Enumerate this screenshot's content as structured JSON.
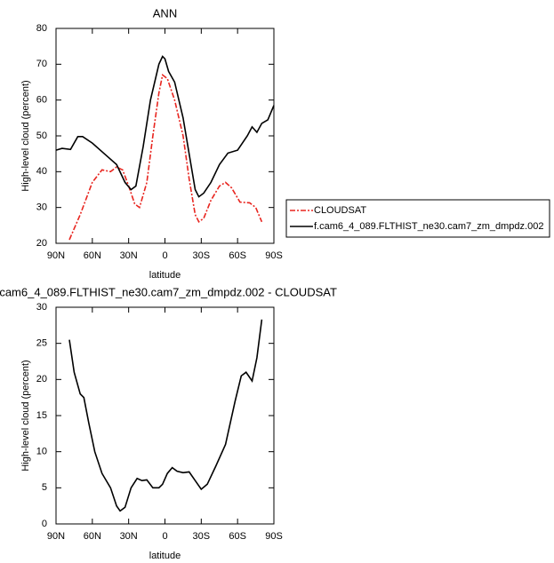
{
  "chart_data": [
    {
      "type": "line",
      "title": "ANN",
      "xlabel": "latitude",
      "ylabel": "High-level cloud (percent)",
      "xlim": [
        90,
        -90
      ],
      "ylim": [
        20,
        80
      ],
      "xticks": [
        {
          "value": 90,
          "label": "90N"
        },
        {
          "value": 60,
          "label": "60N"
        },
        {
          "value": 30,
          "label": "30N"
        },
        0,
        {
          "value": -30,
          "label": "30S"
        },
        {
          "value": -60,
          "label": "60S"
        },
        {
          "value": -90,
          "label": "90S"
        }
      ],
      "yticks": [
        20,
        30,
        40,
        50,
        60,
        70,
        80
      ],
      "legend": "right",
      "series": [
        {
          "name": "CLOUDSAT",
          "color": "#e8251f",
          "linestyle": "dashed",
          "x": [
            79,
            70,
            60,
            52,
            45,
            40,
            35,
            30,
            25,
            21,
            15,
            10,
            5,
            2,
            -2,
            -8,
            -15,
            -20,
            -25,
            -28,
            -32,
            -38,
            -45,
            -50,
            -55,
            -62,
            -70,
            -75,
            -80
          ],
          "values": [
            21,
            28,
            37,
            40.5,
            40,
            41.3,
            40.5,
            36,
            31,
            30,
            37,
            50,
            62,
            67,
            66,
            60,
            50,
            38,
            28,
            26,
            27,
            32,
            36,
            37,
            35.5,
            31.5,
            31.3,
            30,
            26
          ]
        },
        {
          "name": "f.cam6_4_089.FLTHIST_ne30.cam7_zm_dmpdz.002",
          "color": "#000000",
          "linestyle": "solid",
          "x": [
            90,
            85,
            78,
            72,
            68,
            60,
            50,
            40,
            33,
            28,
            24,
            18,
            12,
            5,
            2,
            0,
            -3,
            -8,
            -15,
            -20,
            -25,
            -28,
            -32,
            -38,
            -45,
            -52,
            -60,
            -68,
            -72,
            -76,
            -80,
            -85,
            -90
          ],
          "values": [
            46,
            46.5,
            46.2,
            49.8,
            49.8,
            48,
            45,
            42,
            37,
            35,
            36,
            47,
            60,
            70,
            72.2,
            71.5,
            68,
            65,
            55,
            45,
            35,
            33,
            34,
            37,
            42,
            45.2,
            46,
            50,
            52.5,
            51,
            53.5,
            54.5,
            58.5
          ]
        }
      ]
    },
    {
      "type": "line",
      "title": "f.cam6_4_089.FLTHIST_ne30.cam7_zm_dmpdz.002 - CLOUDSAT",
      "xlabel": "latitude",
      "ylabel": "High-level cloud (percent)",
      "xlim": [
        90,
        -90
      ],
      "ylim": [
        0,
        30
      ],
      "xticks": [
        {
          "value": 90,
          "label": "90N"
        },
        {
          "value": 60,
          "label": "60N"
        },
        {
          "value": 30,
          "label": "30N"
        },
        0,
        {
          "value": -30,
          "label": "30S"
        },
        {
          "value": -60,
          "label": "60S"
        },
        {
          "value": -90,
          "label": "90S"
        }
      ],
      "yticks": [
        0,
        5,
        10,
        15,
        20,
        25,
        30
      ],
      "series": [
        {
          "color": "#000000",
          "linestyle": "solid",
          "x": [
            79,
            75,
            70,
            67,
            63,
            58,
            52,
            45,
            40,
            37,
            33,
            28,
            23,
            19,
            15,
            10,
            5,
            2,
            -2,
            -6,
            -10,
            -15,
            -20,
            -25,
            -30,
            -35,
            -42,
            -50,
            -58,
            -63,
            -67,
            -72,
            -76,
            -80
          ],
          "values": [
            25.5,
            21,
            18,
            17.5,
            14,
            10,
            7,
            5,
            2.5,
            1.8,
            2.3,
            5,
            6.3,
            6,
            6.1,
            5,
            5,
            5.5,
            7,
            7.8,
            7.3,
            7.1,
            7.2,
            6,
            4.8,
            5.5,
            8,
            11,
            17,
            20.5,
            21,
            19.8,
            23,
            28.3
          ]
        }
      ]
    }
  ]
}
